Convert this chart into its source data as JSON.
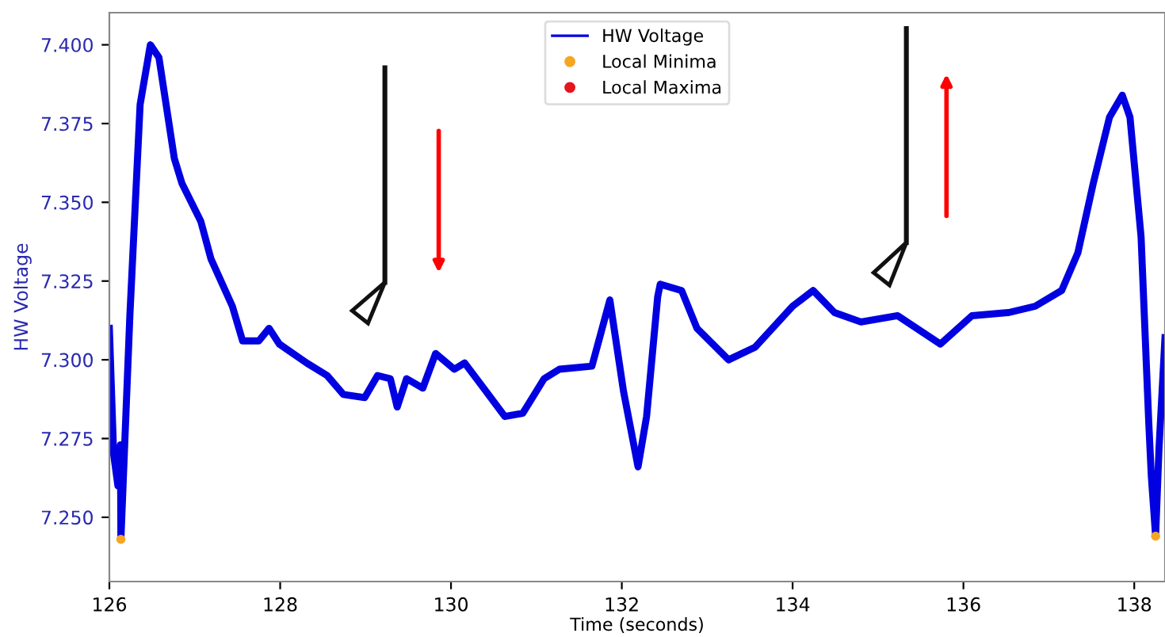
{
  "chart_data": {
    "type": "line",
    "xlabel": "Time (seconds)",
    "ylabel": "HW Voltage",
    "xlim": [
      126,
      138.36
    ],
    "ylim": [
      7.2296,
      7.4102
    ],
    "xticks": [
      126,
      128,
      130,
      132,
      134,
      136,
      138
    ],
    "yticks": [
      {
        "value": 7.25,
        "label": "7.250"
      },
      {
        "value": 7.275,
        "label": "7.275"
      },
      {
        "value": 7.3,
        "label": "7.300"
      },
      {
        "value": 7.325,
        "label": "7.325"
      },
      {
        "value": 7.35,
        "label": "7.350"
      },
      {
        "value": 7.375,
        "label": "7.375"
      },
      {
        "value": 7.4,
        "label": "7.400"
      }
    ],
    "grid": false,
    "legend": "top",
    "series": [
      {
        "name": "HW Voltage",
        "color": "#0000e0",
        "x": [
          126.0,
          126.05,
          126.1,
          126.13,
          126.135,
          126.24,
          126.36,
          126.48,
          126.58,
          126.76,
          126.85,
          127.07,
          127.19,
          127.44,
          127.56,
          127.75,
          127.87,
          127.99,
          128.31,
          128.55,
          128.74,
          128.99,
          129.14,
          129.29,
          129.37,
          129.48,
          129.67,
          129.82,
          130.04,
          130.16,
          130.41,
          130.63,
          130.84,
          131.09,
          131.27,
          131.65,
          131.86,
          132.02,
          132.19,
          132.29,
          132.42,
          132.45,
          132.7,
          132.88,
          133.25,
          133.56,
          134.0,
          134.24,
          134.49,
          134.8,
          135.23,
          135.73,
          136.1,
          136.53,
          136.84,
          137.15,
          137.34,
          137.52,
          137.71,
          137.86,
          137.95,
          138.08,
          138.17,
          138.2,
          138.25,
          138.29,
          138.36
        ],
        "values": [
          7.31,
          7.27,
          7.26,
          7.273,
          7.243,
          7.314,
          7.381,
          7.4,
          7.396,
          7.364,
          7.356,
          7.344,
          7.332,
          7.317,
          7.306,
          7.306,
          7.31,
          7.305,
          7.299,
          7.295,
          7.289,
          7.288,
          7.295,
          7.294,
          7.285,
          7.294,
          7.291,
          7.302,
          7.297,
          7.299,
          7.29,
          7.282,
          7.283,
          7.294,
          7.297,
          7.298,
          7.319,
          7.29,
          7.266,
          7.282,
          7.32,
          7.324,
          7.322,
          7.31,
          7.3,
          7.304,
          7.317,
          7.322,
          7.315,
          7.312,
          7.314,
          7.305,
          7.314,
          7.315,
          7.317,
          7.322,
          7.334,
          7.356,
          7.377,
          7.384,
          7.377,
          7.339,
          7.28,
          7.263,
          7.244,
          7.272,
          7.307
        ]
      },
      {
        "name": "Local Minima",
        "type": "scatter",
        "color": "#f5a623",
        "x": [
          126.135,
          138.25
        ],
        "values": [
          7.243,
          7.244
        ]
      },
      {
        "name": "Local Maxima",
        "type": "scatter",
        "color": "#e8141c"
      }
    ]
  }
}
